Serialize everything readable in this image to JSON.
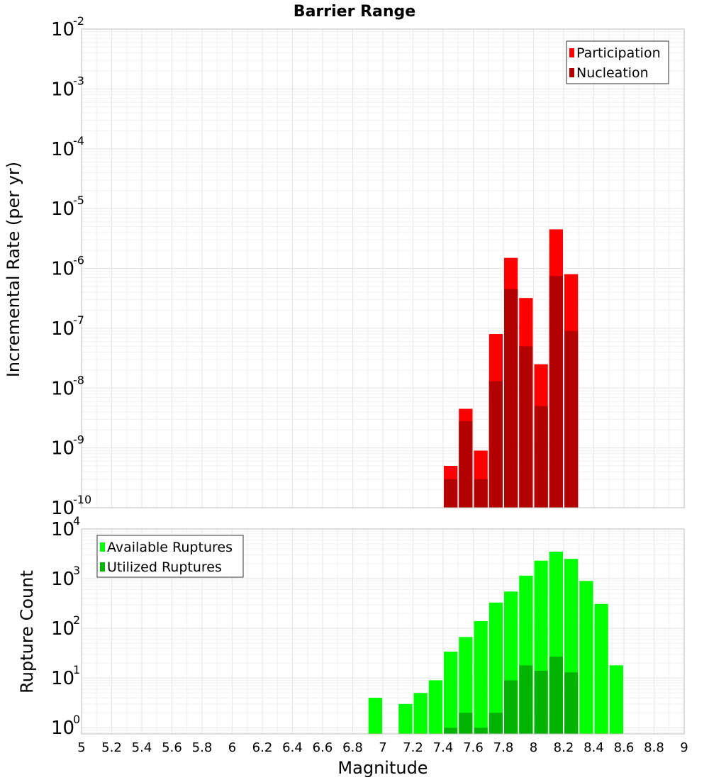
{
  "chart_data": [
    {
      "type": "bar",
      "title": "Barrier Range",
      "xlabel": "",
      "ylabel": "Incremental Rate (per yr)",
      "y_scale": "log",
      "ylim": [
        1e-10,
        0.01
      ],
      "y_ticks": [
        {
          "base": "10",
          "exp": "-10"
        },
        {
          "base": "10",
          "exp": "-9"
        },
        {
          "base": "10",
          "exp": "-8"
        },
        {
          "base": "10",
          "exp": "-7"
        },
        {
          "base": "10",
          "exp": "-6"
        },
        {
          "base": "10",
          "exp": "-5"
        },
        {
          "base": "10",
          "exp": "-4"
        },
        {
          "base": "10",
          "exp": "-3"
        },
        {
          "base": "10",
          "exp": "-2"
        }
      ],
      "xlim": [
        5,
        9
      ],
      "legend_position": "top-right",
      "grid": true,
      "x": [
        7.45,
        7.55,
        7.65,
        7.75,
        7.85,
        7.95,
        8.05,
        8.15,
        8.25
      ],
      "series": [
        {
          "name": "Participation",
          "color": "#ff0000",
          "values": [
            5e-10,
            4.5e-09,
            9e-10,
            8e-08,
            1.5e-06,
            3.2e-07,
            2.5e-08,
            4.5e-06,
            8e-07
          ]
        },
        {
          "name": "Nucleation",
          "color": "#b30000",
          "values": [
            3e-10,
            2.8e-09,
            3e-10,
            1.3e-08,
            4.5e-07,
            5e-08,
            5e-09,
            7.5e-07,
            9e-08
          ]
        }
      ]
    },
    {
      "type": "bar",
      "title": "",
      "xlabel": "Magnitude",
      "ylabel": "Rupture Count",
      "y_scale": "log",
      "ylim": [
        0.75,
        10000
      ],
      "y_ticks": [
        {
          "base": "10",
          "exp": "0"
        },
        {
          "base": "10",
          "exp": "1"
        },
        {
          "base": "10",
          "exp": "2"
        },
        {
          "base": "10",
          "exp": "3"
        },
        {
          "base": "10",
          "exp": "4"
        }
      ],
      "xlim": [
        5,
        9
      ],
      "x_ticks": [
        "5",
        "5.2",
        "5.4",
        "5.6",
        "5.8",
        "6",
        "6.2",
        "6.4",
        "6.6",
        "6.8",
        "7",
        "7.2",
        "7.4",
        "7.6",
        "7.8",
        "8",
        "8.2",
        "8.4",
        "8.6",
        "8.8",
        "9"
      ],
      "legend_position": "top-left",
      "grid": true,
      "x": [
        6.95,
        7.15,
        7.25,
        7.35,
        7.45,
        7.55,
        7.65,
        7.75,
        7.85,
        7.95,
        8.05,
        8.15,
        8.25,
        8.35,
        8.45,
        8.55
      ],
      "series": [
        {
          "name": "Available Ruptures",
          "color": "#00ff00",
          "values": [
            4,
            3,
            5,
            9,
            34,
            67,
            140,
            330,
            550,
            1150,
            2300,
            3500,
            2500,
            900,
            310,
            18
          ]
        },
        {
          "name": "Utilized Ruptures",
          "color": "#00b300",
          "values": [
            0,
            0,
            0,
            0,
            1,
            2,
            1,
            2,
            9,
            18,
            14,
            27,
            13,
            0,
            0,
            0
          ]
        }
      ]
    }
  ]
}
